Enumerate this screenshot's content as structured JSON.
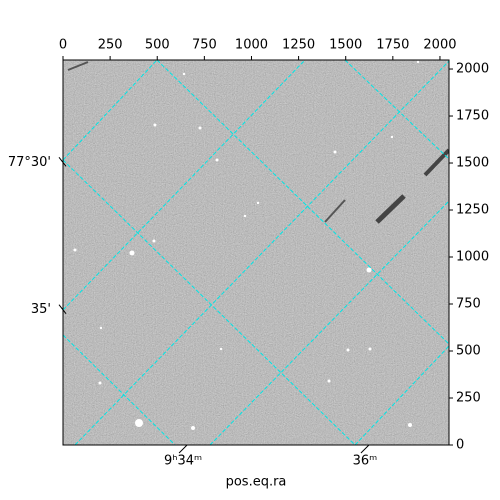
{
  "chart_data": {
    "type": "image",
    "xlabel": "pos.eq.ra",
    "xlim": [
      0,
      2048
    ],
    "ylim": [
      0,
      2048
    ],
    "xticks": [
      0,
      250,
      500,
      750,
      1000,
      1250,
      1500,
      1750,
      2000
    ],
    "yticks": [
      0,
      250,
      500,
      750,
      1000,
      1250,
      1500,
      1750,
      2000
    ],
    "ra_ticks": [
      {
        "value": 637,
        "label": "9ʰ34ᵐ"
      },
      {
        "value": 1602,
        "label": "36ᵐ"
      }
    ],
    "dec_ticks": [
      {
        "value": 1504,
        "label": "77°30'"
      },
      {
        "value": 720,
        "label": "35'"
      }
    ],
    "grid_color": "#00e5e5"
  }
}
